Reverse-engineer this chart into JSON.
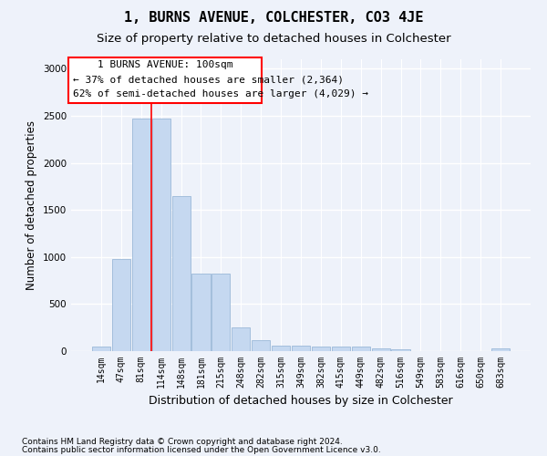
{
  "title": "1, BURNS AVENUE, COLCHESTER, CO3 4JE",
  "subtitle": "Size of property relative to detached houses in Colchester",
  "xlabel": "Distribution of detached houses by size in Colchester",
  "ylabel": "Number of detached properties",
  "categories": [
    "14sqm",
    "47sqm",
    "81sqm",
    "114sqm",
    "148sqm",
    "181sqm",
    "215sqm",
    "248sqm",
    "282sqm",
    "315sqm",
    "349sqm",
    "382sqm",
    "415sqm",
    "449sqm",
    "482sqm",
    "516sqm",
    "549sqm",
    "583sqm",
    "616sqm",
    "650sqm",
    "683sqm"
  ],
  "values": [
    50,
    980,
    2470,
    2470,
    1650,
    820,
    820,
    255,
    120,
    55,
    55,
    45,
    45,
    45,
    28,
    15,
    4,
    2,
    2,
    2,
    25
  ],
  "bar_color": "#c5d8f0",
  "bar_edge_color": "#9ab8d8",
  "ylim": [
    0,
    3100
  ],
  "yticks": [
    0,
    500,
    1000,
    1500,
    2000,
    2500,
    3000
  ],
  "red_line_x": 2.5,
  "annotation_line1": "1 BURNS AVENUE: 100sqm",
  "annotation_line2": "← 37% of detached houses are smaller (2,364)",
  "annotation_line3": "62% of semi-detached houses are larger (4,029) →",
  "footer_line1": "Contains HM Land Registry data © Crown copyright and database right 2024.",
  "footer_line2": "Contains public sector information licensed under the Open Government Licence v3.0.",
  "background_color": "#eef2fa",
  "grid_color": "#ffffff",
  "title_fontsize": 11,
  "subtitle_fontsize": 9.5,
  "xlabel_fontsize": 9,
  "ylabel_fontsize": 8.5,
  "tick_fontsize": 7,
  "footer_fontsize": 6.5,
  "ann_fontsize": 8
}
